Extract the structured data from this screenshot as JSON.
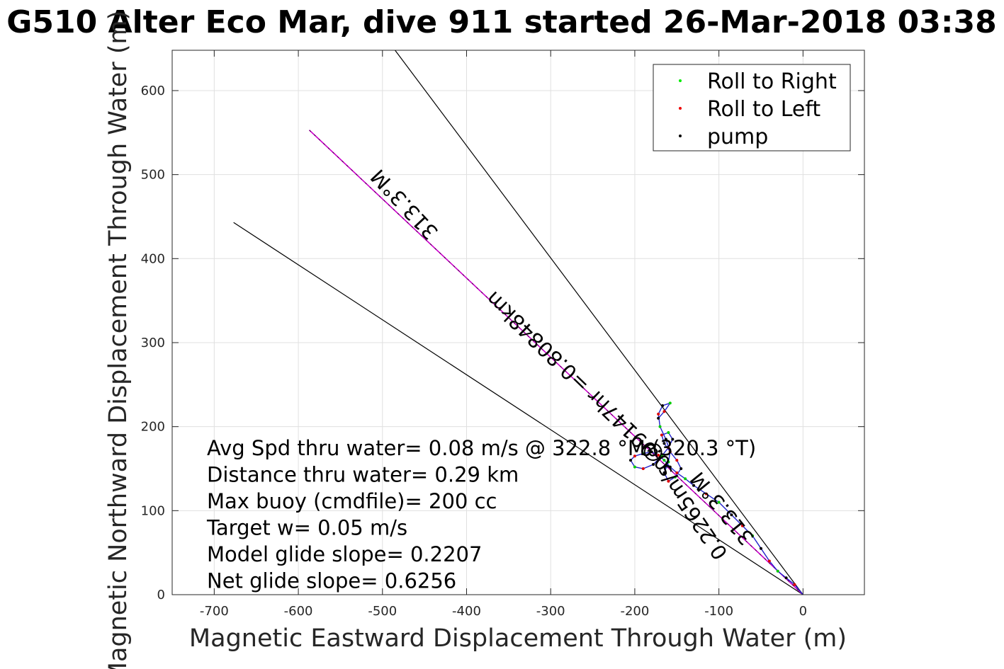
{
  "chart_data": {
    "type": "line",
    "title": "G510 Alter Eco Mar, dive 911 started 26-Mar-2018 03:38",
    "xlabel": "Magnetic Eastward Displacement Through Water (m)",
    "ylabel": "Magnetic Northward Displacement Through Water (m)",
    "xlim": [
      -750,
      73
    ],
    "ylim": [
      0,
      648
    ],
    "xticks": [
      -700,
      -600,
      -500,
      -400,
      -300,
      -200,
      -100,
      0
    ],
    "yticks": [
      0,
      100,
      200,
      300,
      400,
      500,
      600
    ],
    "grid": true,
    "legend": {
      "placement": "top-right",
      "entries": [
        {
          "name": "Roll to Right",
          "color": "#00ee00"
        },
        {
          "name": "Roll to Left",
          "color": "#ee0000"
        },
        {
          "name": "pump",
          "color": "#000000"
        }
      ]
    },
    "lines": {
      "upper": [
        [
          0,
          0
        ],
        [
          -485,
          648
        ]
      ],
      "lower": [
        [
          0,
          0
        ],
        [
          -677,
          443
        ]
      ],
      "heading_line": [
        [
          0,
          0
        ],
        [
          -587,
          553
        ]
      ]
    },
    "track": [
      [
        0,
        0
      ],
      [
        -10,
        12
      ],
      [
        -20,
        20
      ],
      [
        -30,
        28
      ],
      [
        -40,
        40
      ],
      [
        -50,
        55
      ],
      [
        -60,
        70
      ],
      [
        -72,
        82
      ],
      [
        -85,
        95
      ],
      [
        -100,
        110
      ],
      [
        -115,
        120
      ],
      [
        -130,
        130
      ],
      [
        -140,
        138
      ],
      [
        -150,
        145
      ],
      [
        -158,
        152
      ],
      [
        -165,
        160
      ],
      [
        -172,
        166
      ],
      [
        -180,
        170
      ],
      [
        -190,
        168
      ],
      [
        -200,
        165
      ],
      [
        -205,
        160
      ],
      [
        -200,
        152
      ],
      [
        -190,
        150
      ],
      [
        -178,
        155
      ],
      [
        -168,
        165
      ],
      [
        -160,
        175
      ],
      [
        -155,
        185
      ],
      [
        -160,
        193
      ],
      [
        -168,
        190
      ],
      [
        -165,
        180
      ],
      [
        -158,
        170
      ],
      [
        -150,
        160
      ],
      [
        -145,
        150
      ],
      [
        -152,
        140
      ],
      [
        -160,
        135
      ],
      [
        -165,
        145
      ],
      [
        -160,
        158
      ],
      [
        -158,
        170
      ],
      [
        -163,
        185
      ],
      [
        -170,
        200
      ],
      [
        -172,
        215
      ],
      [
        -167,
        225
      ],
      [
        -158,
        228
      ],
      [
        -165,
        218
      ],
      [
        -172,
        210
      ]
    ],
    "labels": [
      {
        "text": "313.3°M",
        "rotation": 227
      },
      {
        "text": "0.99147hr =0.80848km",
        "rotation": 224
      },
      {
        "text": "313.3°M",
        "rotation": 231
      },
      {
        "text": "0.2265m/s @",
        "rotation": 236
      }
    ],
    "stats": [
      "Avg Spd thru water=  0.08 m/s @ 322.8 °M (320.3 °T)",
      "Distance thru water=  0.29 km",
      "Max buoy (cmdfile)= 200 cc",
      "Target w= 0.05 m/s",
      "Model glide slope= 0.2207",
      "Net glide slope= 0.6256"
    ]
  }
}
